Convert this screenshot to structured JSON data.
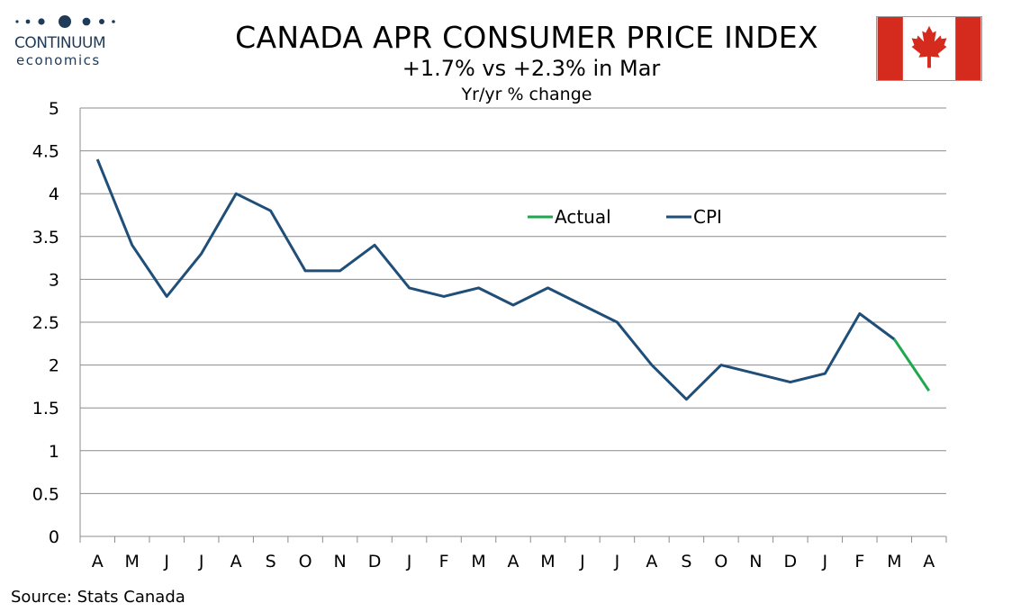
{
  "logo": {
    "brand": "CONTINUUM",
    "sub": "economics",
    "icon": "logo-dots-icon"
  },
  "header": {
    "title": "CANADA APR CONSUMER PRICE INDEX",
    "subtitle": "+1.7% vs +2.3% in Mar",
    "subsubtitle": "Yr/yr % change"
  },
  "flag": {
    "icon": "canada-flag-icon",
    "red": "#d52b1e",
    "white": "#ffffff"
  },
  "footer": {
    "source": "Source: Stats Canada"
  },
  "chart_data": {
    "type": "line",
    "categories": [
      "A",
      "M",
      "J",
      "J",
      "A",
      "S",
      "O",
      "N",
      "D",
      "J",
      "F",
      "M",
      "A",
      "M",
      "J",
      "J",
      "A",
      "S",
      "O",
      "N",
      "D",
      "J",
      "F",
      "M",
      "A"
    ],
    "series": [
      {
        "name": "CPI",
        "color": "#1f4e79",
        "values": [
          4.4,
          3.4,
          2.8,
          3.3,
          4.0,
          3.8,
          3.1,
          3.1,
          3.4,
          2.9,
          2.8,
          2.9,
          2.7,
          2.9,
          2.7,
          2.5,
          2.0,
          1.6,
          2.0,
          1.9,
          1.8,
          1.9,
          2.6,
          2.3,
          null
        ]
      },
      {
        "name": "Actual",
        "color": "#1fa84f",
        "values": [
          null,
          null,
          null,
          null,
          null,
          null,
          null,
          null,
          null,
          null,
          null,
          null,
          null,
          null,
          null,
          null,
          null,
          null,
          null,
          null,
          null,
          null,
          null,
          2.3,
          1.7
        ]
      }
    ],
    "yticks": [
      "0",
      "0.5",
      "1",
      "1.5",
      "2",
      "2.5",
      "3",
      "3.5",
      "4",
      "4.5",
      "5"
    ],
    "ylim": [
      0,
      5
    ],
    "grid": true,
    "legend": {
      "placement": "top-center",
      "order": [
        "Actual",
        "CPI"
      ]
    }
  }
}
